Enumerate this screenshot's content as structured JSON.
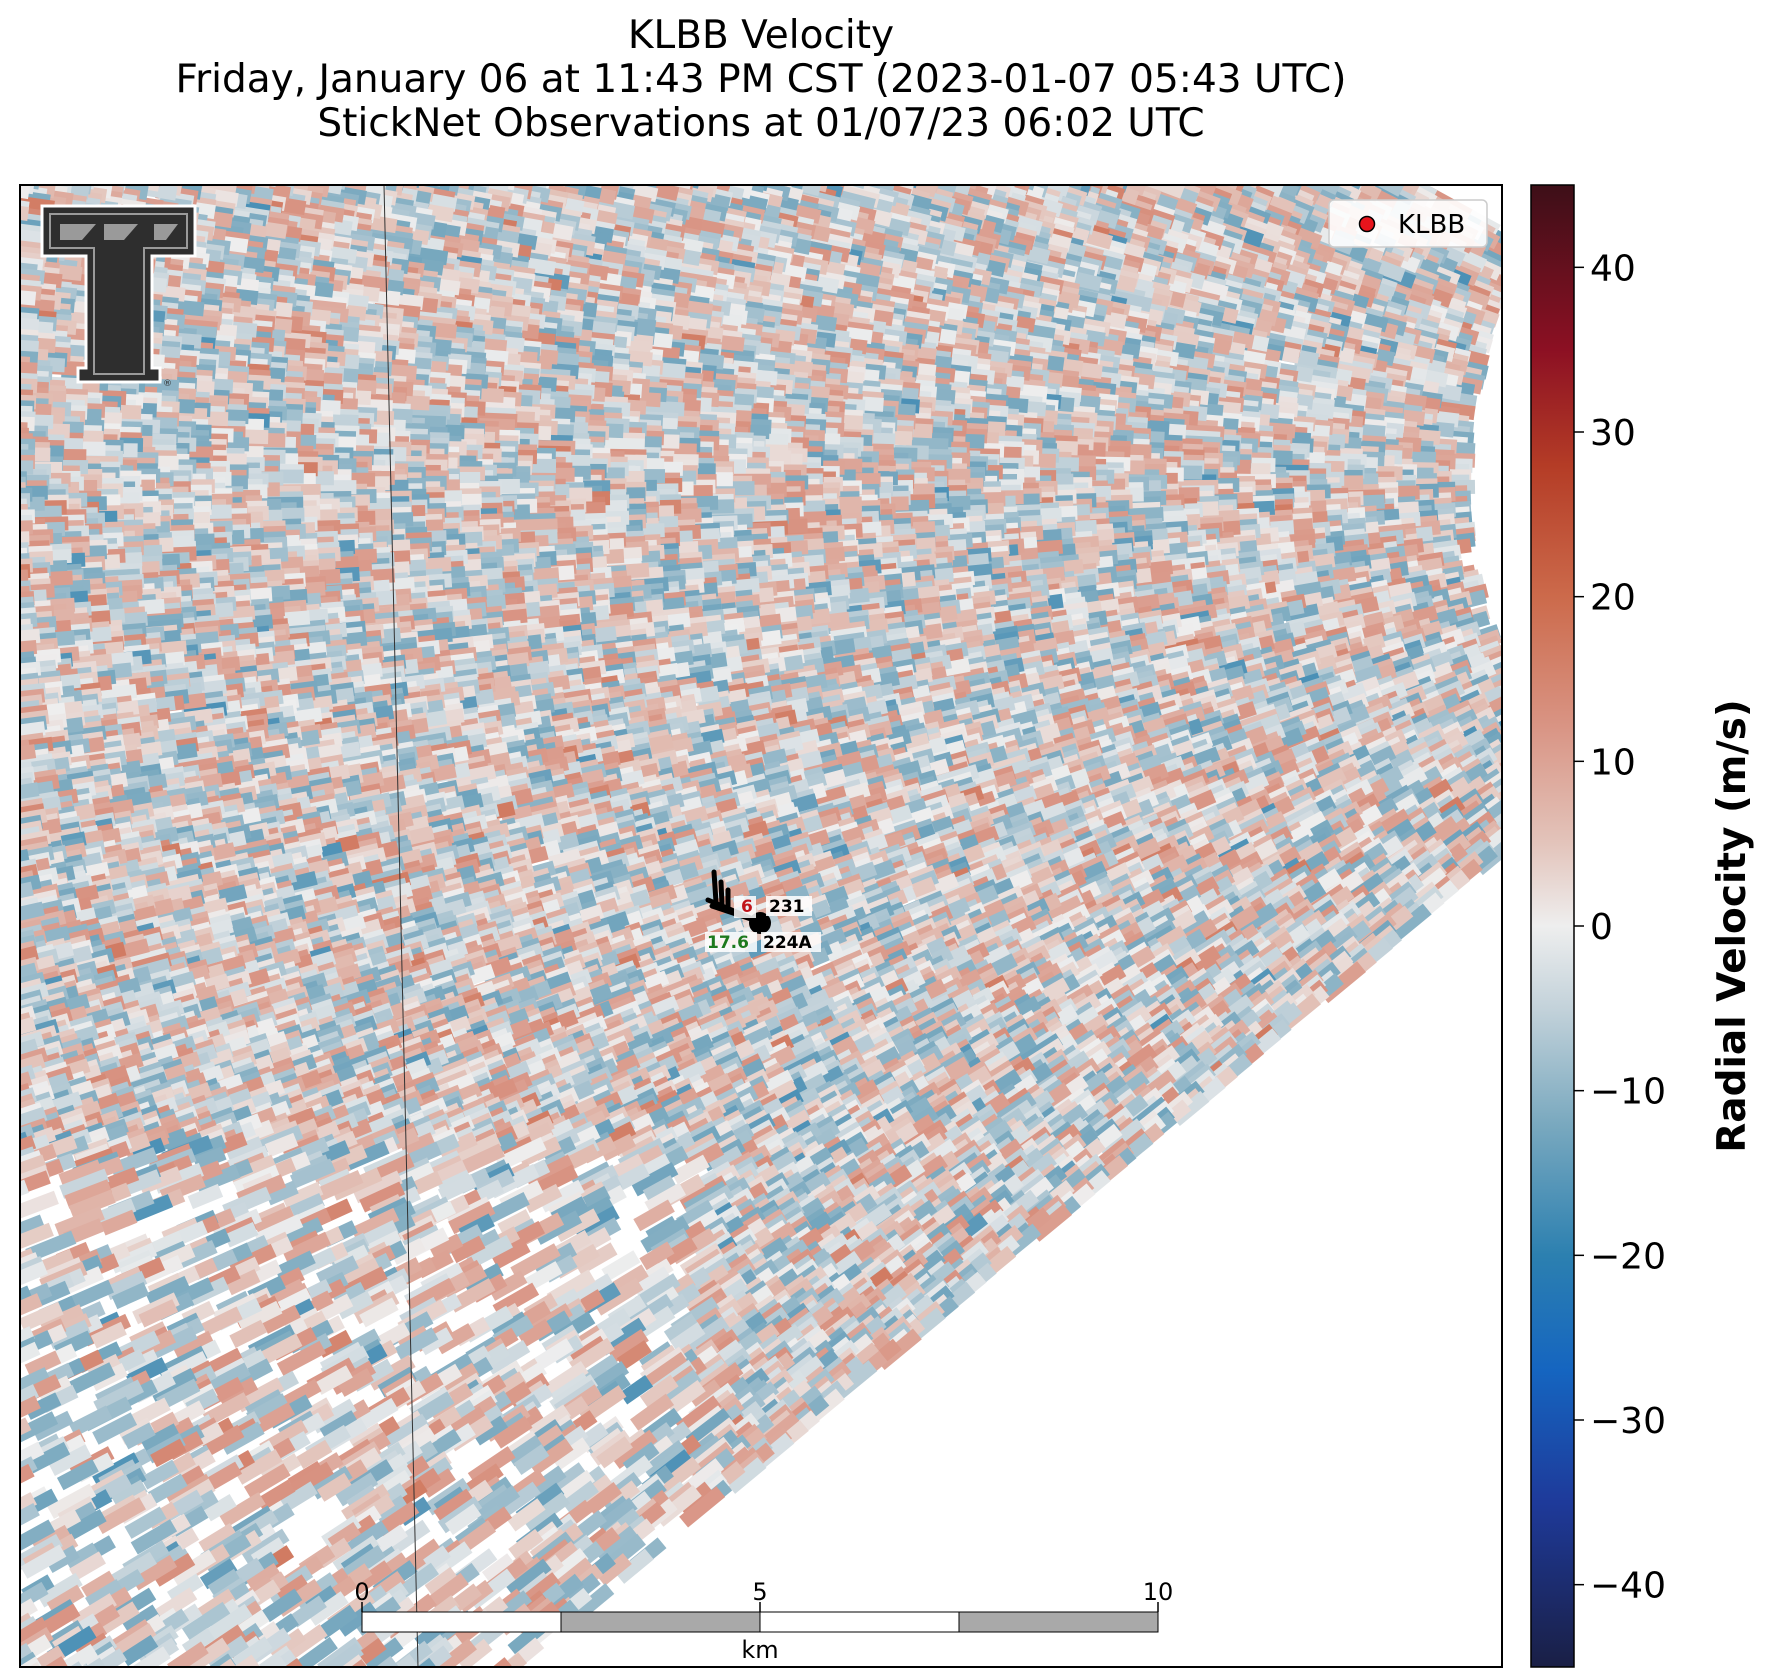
{
  "title": {
    "line1": "KLBB Velocity",
    "line2": "Friday, January 06 at 11:43 PM CST (2023-01-07 05:43 UTC)",
    "line3": "StickNet Observations at 01/07/23 06:02 UTC"
  },
  "legend": {
    "label": "KLBB",
    "marker_color": "#e8141c"
  },
  "colorbar": {
    "label": "Radial Velocity (m/s)",
    "range": [
      -45,
      45
    ],
    "ticks": [
      "40",
      "30",
      "20",
      "10",
      "0",
      "−10",
      "−20",
      "−30",
      "−40"
    ],
    "tick_values": [
      40,
      30,
      20,
      10,
      0,
      -10,
      -20,
      -30,
      -40
    ],
    "stops": [
      {
        "v": -45,
        "color": "#1a1f45"
      },
      {
        "v": -35,
        "color": "#1e3a9a"
      },
      {
        "v": -27,
        "color": "#1565c0"
      },
      {
        "v": -20,
        "color": "#2c80b0"
      },
      {
        "v": -12,
        "color": "#7aa9bf"
      },
      {
        "v": -5,
        "color": "#c3d2da"
      },
      {
        "v": 0,
        "color": "#eeeeee"
      },
      {
        "v": 5,
        "color": "#e3c4bb"
      },
      {
        "v": 12,
        "color": "#d99585"
      },
      {
        "v": 20,
        "color": "#cc6a4b"
      },
      {
        "v": 28,
        "color": "#b43c26"
      },
      {
        "v": 35,
        "color": "#8c1023"
      },
      {
        "v": 45,
        "color": "#3d0f18"
      }
    ]
  },
  "scalebar": {
    "ticks": [
      "0",
      "5",
      "10"
    ],
    "unit": "km"
  },
  "stations": [
    {
      "id": "231",
      "value": "6",
      "value_color": "#c0141a"
    },
    {
      "id": "224A",
      "value": "17.6",
      "value_color": "#1e7a1e"
    }
  ],
  "logo": {
    "name": "texas-tech-logo"
  }
}
